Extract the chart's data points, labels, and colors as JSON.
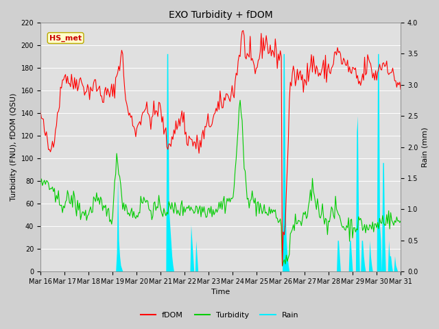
{
  "title": "EXO Turbidity + fDOM",
  "xlabel": "Time",
  "ylabel_left": "Turbidity (FNU), fDOM (QSU)",
  "ylabel_right": "Rain (mm)",
  "ylim_left": [
    0,
    220
  ],
  "ylim_right": [
    0,
    4.0
  ],
  "yticks_left": [
    0,
    20,
    40,
    60,
    80,
    100,
    120,
    140,
    160,
    180,
    200,
    220
  ],
  "yticks_right": [
    0.0,
    0.5,
    1.0,
    1.5,
    2.0,
    2.5,
    3.0,
    3.5,
    4.0
  ],
  "bg_color": "#d0d0d0",
  "plot_bg_color": "#e0e0e0",
  "fdom_color": "#ff0000",
  "turbidity_color": "#00cc00",
  "rain_color": "#00eeff",
  "annotation_label": "HS_met",
  "annotation_color": "#cc0000",
  "annotation_bg": "#ffffcc",
  "legend_labels": [
    "fDOM",
    "Turbidity",
    "Rain"
  ],
  "n_points": 360,
  "x_tick_labels": [
    "Mar 16",
    "Mar 17",
    "Mar 18",
    "Mar 19",
    "Mar 20",
    "Mar 21",
    "Mar 22",
    "Mar 23",
    "Mar 24",
    "Mar 25",
    "Mar 26",
    "Mar 27",
    "Mar 28",
    "Mar 29",
    "Mar 30",
    "Mar 31"
  ],
  "title_fontsize": 10,
  "label_fontsize": 8,
  "tick_fontsize": 7,
  "legend_fontsize": 8
}
